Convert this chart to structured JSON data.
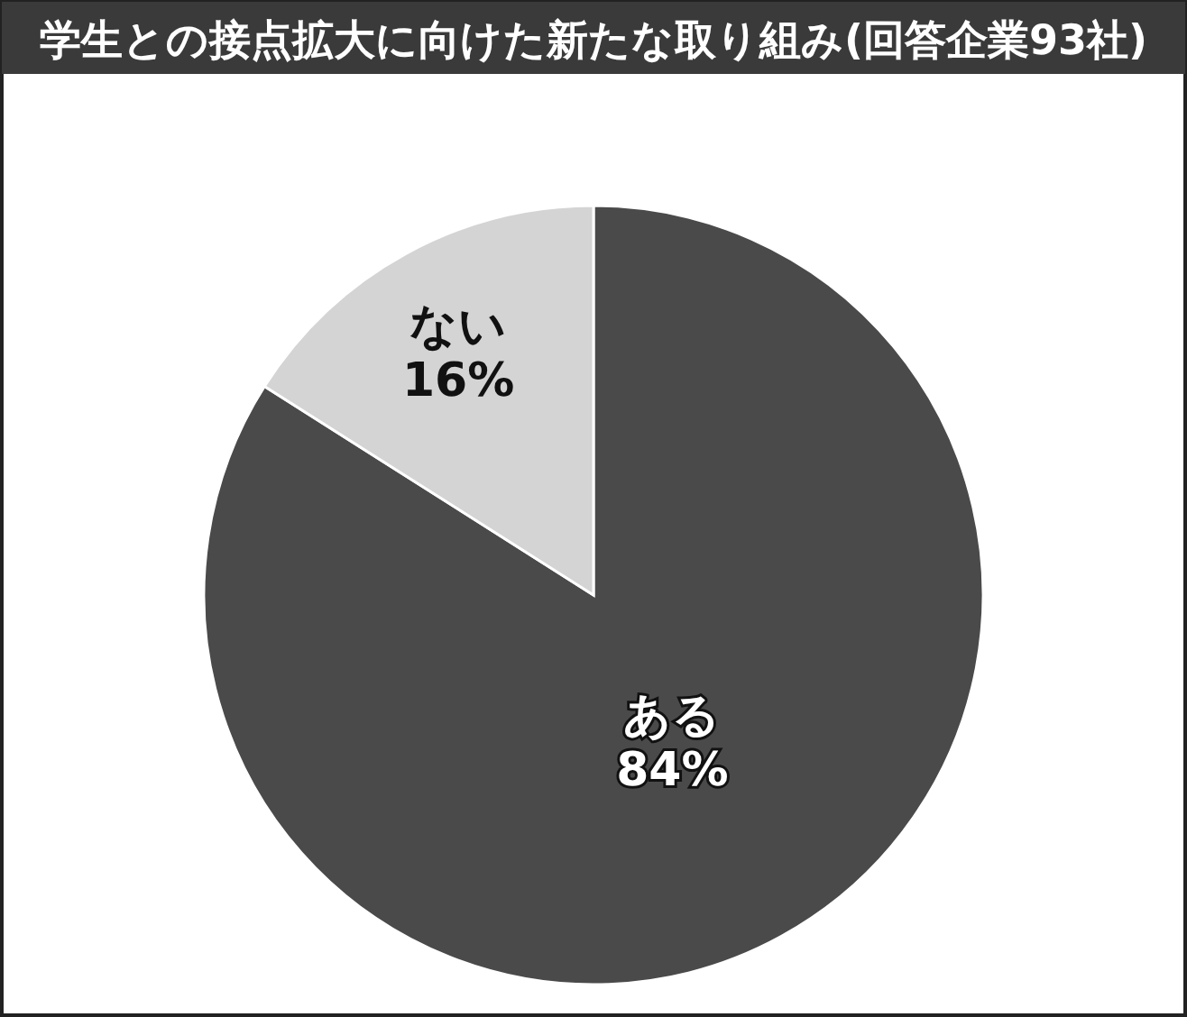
{
  "chart_data": {
    "type": "pie",
    "title": "学生との接点拡大に向けた新たな取り組み(回答企業93社)",
    "categories": [
      "ある",
      "ない"
    ],
    "values": [
      84,
      16
    ],
    "colors": [
      "#4a4a4a",
      "#d4d4d4"
    ],
    "value_labels": [
      "84%",
      "16%"
    ]
  }
}
